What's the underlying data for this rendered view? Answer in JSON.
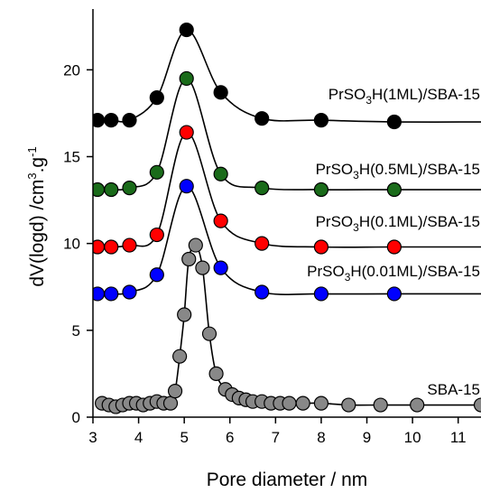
{
  "chart_data": {
    "type": "line",
    "title": "",
    "xlabel": "Pore diameter / nm",
    "ylabel_main": "dV(logd) /cm",
    "ylabel_sup1": "3",
    "ylabel_mid": ".g",
    "ylabel_sup2": "-1",
    "xlim": [
      3,
      11.5
    ],
    "ylim": [
      0,
      23.5
    ],
    "xticks": [
      3,
      4,
      5,
      6,
      7,
      8,
      9,
      10,
      11
    ],
    "yticks": [
      0,
      5,
      10,
      15,
      20
    ],
    "grid": false,
    "series": [
      {
        "label_pre": "PrSO",
        "label_sub": "3",
        "label_post": "H(1ML)/SBA-15",
        "color": "#000000",
        "points": [
          [
            3.1,
            17.1
          ],
          [
            3.4,
            17.1
          ],
          [
            3.8,
            17.1
          ],
          [
            4.4,
            18.4
          ],
          [
            5.05,
            22.3
          ],
          [
            5.8,
            18.7
          ],
          [
            6.7,
            17.2
          ],
          [
            8.0,
            17.1
          ],
          [
            9.6,
            17.0
          ]
        ]
      },
      {
        "label_pre": "PrSO",
        "label_sub": "3",
        "label_post": "H(0.5ML)/SBA-15",
        "color": "#1a6b1a",
        "points": [
          [
            3.1,
            13.1
          ],
          [
            3.4,
            13.1
          ],
          [
            3.8,
            13.2
          ],
          [
            4.4,
            14.1
          ],
          [
            5.05,
            19.5
          ],
          [
            5.8,
            14.0
          ],
          [
            6.7,
            13.2
          ],
          [
            8.0,
            13.1
          ],
          [
            9.6,
            13.1
          ]
        ]
      },
      {
        "label_pre": "PrSO",
        "label_sub": "3",
        "label_post": "H(0.1ML)/SBA-15",
        "color": "#ff0000",
        "points": [
          [
            3.1,
            9.8
          ],
          [
            3.4,
            9.8
          ],
          [
            3.8,
            9.9
          ],
          [
            4.4,
            10.5
          ],
          [
            5.05,
            16.4
          ],
          [
            5.8,
            11.3
          ],
          [
            6.7,
            10.0
          ],
          [
            8.0,
            9.8
          ],
          [
            9.6,
            9.8
          ]
        ]
      },
      {
        "label_pre": "PrSO",
        "label_sub": "3",
        "label_post": "H(0.01ML)/SBA-15",
        "color": "#0000ff",
        "points": [
          [
            3.1,
            7.1
          ],
          [
            3.4,
            7.1
          ],
          [
            3.8,
            7.2
          ],
          [
            4.4,
            8.2
          ],
          [
            5.05,
            13.3
          ],
          [
            5.8,
            8.6
          ],
          [
            6.7,
            7.2
          ],
          [
            8.0,
            7.1
          ],
          [
            9.6,
            7.1
          ]
        ]
      },
      {
        "label_pre": "SBA-15",
        "label_sub": "",
        "label_post": "",
        "color": "#888888",
        "points": [
          [
            3.2,
            0.8
          ],
          [
            3.35,
            0.7
          ],
          [
            3.5,
            0.6
          ],
          [
            3.65,
            0.7
          ],
          [
            3.8,
            0.8
          ],
          [
            3.95,
            0.8
          ],
          [
            4.1,
            0.7
          ],
          [
            4.25,
            0.8
          ],
          [
            4.4,
            0.9
          ],
          [
            4.55,
            0.8
          ],
          [
            4.7,
            0.8
          ],
          [
            4.8,
            1.5
          ],
          [
            4.9,
            3.5
          ],
          [
            5.0,
            5.9
          ],
          [
            5.1,
            9.1
          ],
          [
            5.25,
            9.9
          ],
          [
            5.4,
            8.6
          ],
          [
            5.55,
            4.8
          ],
          [
            5.7,
            2.5
          ],
          [
            5.9,
            1.6
          ],
          [
            6.05,
            1.3
          ],
          [
            6.2,
            1.1
          ],
          [
            6.35,
            1.0
          ],
          [
            6.5,
            0.9
          ],
          [
            6.7,
            0.9
          ],
          [
            6.9,
            0.8
          ],
          [
            7.1,
            0.8
          ],
          [
            7.3,
            0.8
          ],
          [
            7.6,
            0.8
          ],
          [
            8.0,
            0.8
          ],
          [
            8.6,
            0.7
          ],
          [
            9.3,
            0.7
          ],
          [
            10.1,
            0.7
          ],
          [
            11.5,
            0.7
          ]
        ]
      }
    ]
  }
}
